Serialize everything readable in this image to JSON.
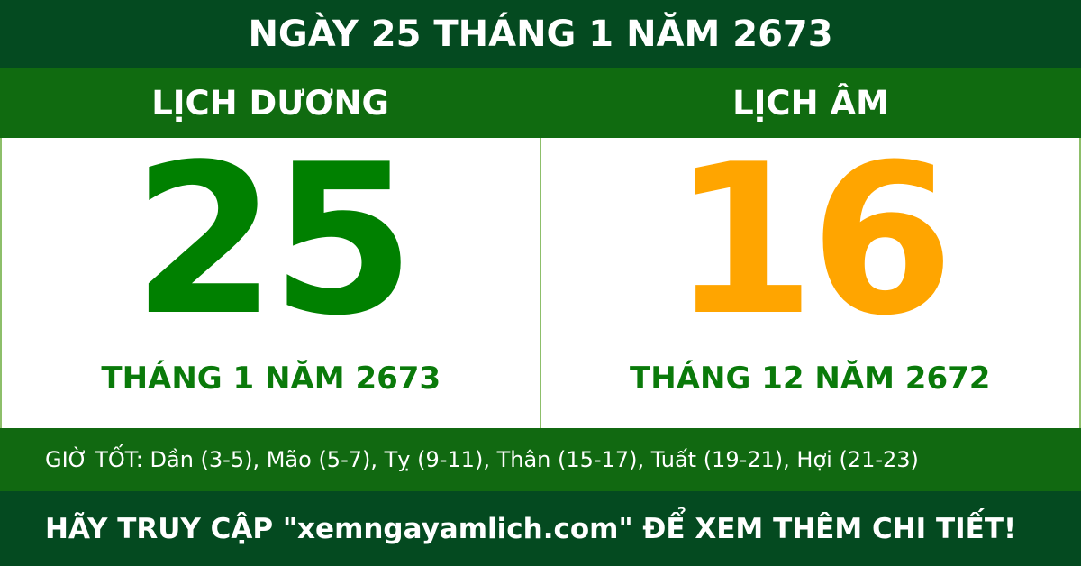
{
  "title": "NGÀY 25 THÁNG 1 NĂM 2673",
  "solar": {
    "heading": "LỊCH DƯƠNG",
    "day": "25",
    "month_year": "THÁNG 1 NĂM 2673",
    "color": "#008000"
  },
  "lunar": {
    "heading": "LỊCH ÂM",
    "day": "16",
    "month_year": "THÁNG 12 NĂM 2672",
    "color": "#ffa500"
  },
  "good_hours": "GIỜ TỐT: Dần (3-5), Mão (5-7), Tỵ (9-11), Thân (15-17), Tuất (19-21), Hợi (21-23)",
  "cta": "HÃY TRUY CẬP \"xemngayamlich.com\" ĐỂ XEM THÊM CHI TIẾT!"
}
